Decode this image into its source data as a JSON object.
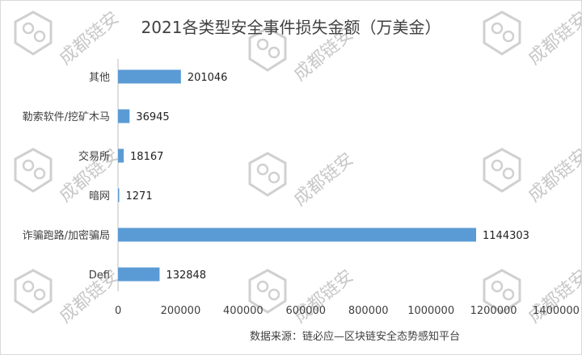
{
  "watermark": {
    "text": "成都链安",
    "color": "#d0d0d0"
  },
  "chart_data": {
    "type": "bar",
    "orientation": "horizontal",
    "title": "2021各类型安全事件损失金额（万美金）",
    "categories": [
      "其他",
      "勒索软件/挖矿木马",
      "交易所",
      "暗网",
      "诈骗跑路/加密骗局",
      "Defi"
    ],
    "values": [
      201046,
      36945,
      18167,
      1271,
      1144303,
      132848
    ],
    "xlim": [
      0,
      1400000
    ],
    "xticks": [
      0,
      200000,
      400000,
      600000,
      800000,
      1000000,
      1200000,
      1400000
    ],
    "grid": false,
    "legend": "none",
    "bar_color": "#5b9bd5",
    "source_note": "数据来源：链必应—区块链安全态势感知平台"
  }
}
